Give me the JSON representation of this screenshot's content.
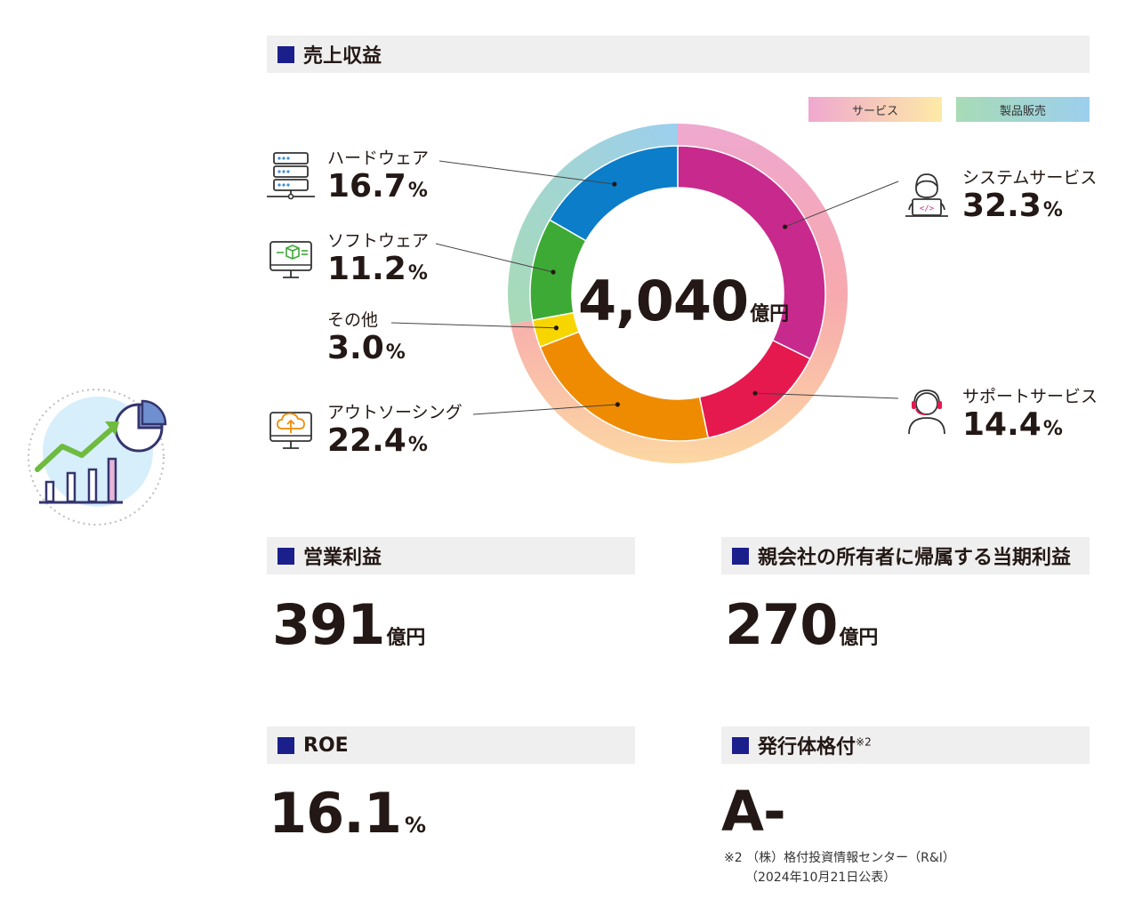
{
  "sections": {
    "revenue_title": "売上収益",
    "operating_profit_title": "営業利益",
    "net_profit_title": "親会社の所有者に帰属する当期利益",
    "roe_title": "ROE",
    "rating_title": "発行体格付",
    "rating_sup": "※2"
  },
  "legend": {
    "service": "サービス",
    "product": "製品販売"
  },
  "center_total": {
    "value": "4,040",
    "unit": "億円"
  },
  "segments_display": [
    {
      "name": "ハードウェア",
      "value": "16.7",
      "unit": "%"
    },
    {
      "name": "ソフトウェア",
      "value": "11.2",
      "unit": "%"
    },
    {
      "name": "その他",
      "value": "3.0",
      "unit": "%"
    },
    {
      "name": "アウトソーシング",
      "value": "22.4",
      "unit": "%"
    },
    {
      "name": "システムサービス",
      "value": "32.3",
      "unit": "%"
    },
    {
      "name": "サポートサービス",
      "value": "14.4",
      "unit": "%"
    }
  ],
  "kpis": {
    "operating_profit": {
      "value": "391",
      "unit": "億円"
    },
    "net_profit": {
      "value": "270",
      "unit": "億円"
    },
    "roe": {
      "value": "16.1",
      "unit": "%"
    },
    "rating": {
      "value": "A-"
    }
  },
  "footnote": {
    "line1": "※2 （株）格付投資情報センター（R&I）",
    "line2": "（2024年10月21日公表）"
  },
  "icons": [
    "chart-growth-icon",
    "server-icon",
    "monitor-software-icon",
    "monitor-cloud-icon",
    "engineer-laptop-icon",
    "headset-operator-icon"
  ],
  "colors": {
    "system_service": "#c72a8c",
    "support_service": "#e6194f",
    "outsourcing": "#ef8b00",
    "other": "#f7d600",
    "software": "#3daa35",
    "hardware": "#0b7dc9",
    "header_square": "#1a1f8c"
  },
  "chart_data": {
    "type": "pie",
    "title": "売上収益",
    "total": 4040,
    "unit": "億円",
    "slices": [
      {
        "label": "システムサービス",
        "value": 32.3,
        "group": "サービス",
        "color": "#c72a8c"
      },
      {
        "label": "サポートサービス",
        "value": 14.4,
        "group": "サービス",
        "color": "#e6194f"
      },
      {
        "label": "アウトソーシング",
        "value": 22.4,
        "group": "サービス",
        "color": "#ef8b00"
      },
      {
        "label": "その他",
        "value": 3.0,
        "group": "サービス",
        "color": "#f7d600"
      },
      {
        "label": "ソフトウェア",
        "value": 11.2,
        "group": "製品販売",
        "color": "#3daa35"
      },
      {
        "label": "ハードウェア",
        "value": 16.7,
        "group": "製品販売",
        "color": "#0b7dc9"
      }
    ],
    "groups": [
      {
        "name": "サービス",
        "value": 72.1
      },
      {
        "name": "製品販売",
        "value": 27.9
      }
    ],
    "legend": "top-right"
  }
}
